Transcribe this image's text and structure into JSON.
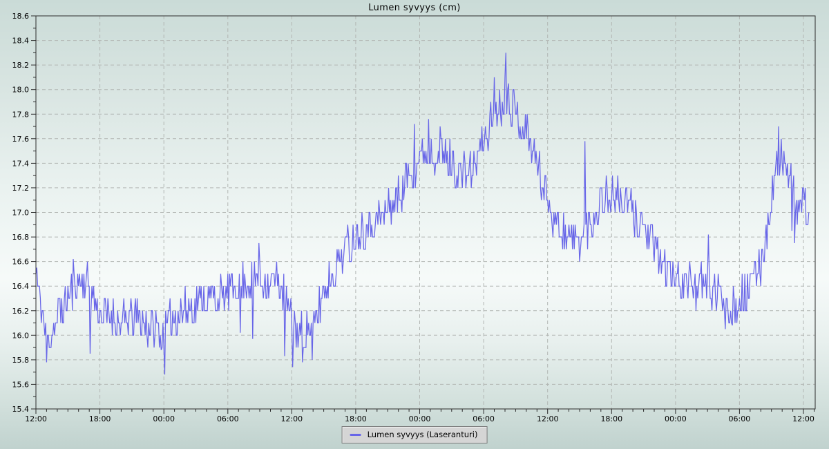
{
  "page": {
    "title": "Lumen syvyys (cm)"
  },
  "legend": {
    "items": [
      {
        "label": "Lumen syvyys (Laseranturi)",
        "color": "#6866e8"
      }
    ]
  },
  "colors": {
    "line": "#6866e8",
    "grid": "#b2b6b3",
    "axis": "#2b2b2b",
    "text": "#000000",
    "legend_bg": "#d5d5d5",
    "legend_border": "#7a7a7a"
  },
  "chart_data": {
    "type": "line",
    "title": "Lumen syvyys (cm)",
    "unit": "cm",
    "legend_position": "bottom-center",
    "grid_style": "dashed",
    "x_unit": "time of day, 72 h span, major ticks every 6 h, minor ticks hourly",
    "x_tick_labels": [
      "12:00",
      "18:00",
      "00:00",
      "06:00",
      "12:00",
      "18:00",
      "00:00",
      "06:00",
      "12:00",
      "18:00",
      "00:00",
      "06:00",
      "12:00"
    ],
    "x_domain_hours": [
      0,
      73.1
    ],
    "x_major_step_hours": 6,
    "x_minor_step_hours": 1,
    "data_end_hour": 72.5,
    "ylim": [
      15.4,
      18.6
    ],
    "y_major_step": 0.2,
    "y_minor_step": 0.1,
    "y_tick_labels": [
      "15.4",
      "15.6",
      "15.8",
      "16.0",
      "16.2",
      "16.4",
      "16.6",
      "16.8",
      "17.0",
      "17.2",
      "17.4",
      "17.6",
      "17.8",
      "18.0",
      "18.2",
      "18.4",
      "18.6"
    ],
    "series": [
      {
        "name": "Lumen syvyys (Laseranturi)",
        "quantize_cm": 0.1,
        "noise_amplitude_cm": 0.16,
        "samples_per_hour": 12,
        "noise_seed": 11,
        "trend_points": [
          [
            0,
            16.45
          ],
          [
            0.5,
            16.2
          ],
          [
            1,
            15.95
          ],
          [
            1.5,
            16.0
          ],
          [
            2,
            16.15
          ],
          [
            3,
            16.3
          ],
          [
            4,
            16.45
          ],
          [
            5,
            16.4
          ],
          [
            5.5,
            16.25
          ],
          [
            6,
            16.2
          ],
          [
            7,
            16.15
          ],
          [
            8,
            16.1
          ],
          [
            9,
            16.15
          ],
          [
            10,
            16.1
          ],
          [
            11,
            16.05
          ],
          [
            12,
            16.05
          ],
          [
            13,
            16.15
          ],
          [
            14,
            16.2
          ],
          [
            15,
            16.25
          ],
          [
            16,
            16.3
          ],
          [
            17,
            16.3
          ],
          [
            18,
            16.35
          ],
          [
            19,
            16.4
          ],
          [
            20,
            16.45
          ],
          [
            21,
            16.45
          ],
          [
            22,
            16.45
          ],
          [
            23,
            16.4
          ],
          [
            23.5,
            16.25
          ],
          [
            24,
            16.1
          ],
          [
            25,
            16.05
          ],
          [
            26,
            16.05
          ],
          [
            27,
            16.35
          ],
          [
            28,
            16.55
          ],
          [
            29,
            16.7
          ],
          [
            30,
            16.8
          ],
          [
            31,
            16.9
          ],
          [
            32,
            16.95
          ],
          [
            33,
            17.0
          ],
          [
            34,
            17.15
          ],
          [
            35,
            17.3
          ],
          [
            36,
            17.45
          ],
          [
            37,
            17.5
          ],
          [
            38,
            17.5
          ],
          [
            39,
            17.4
          ],
          [
            40,
            17.3
          ],
          [
            41,
            17.35
          ],
          [
            42,
            17.6
          ],
          [
            43,
            17.8
          ],
          [
            44,
            17.95
          ],
          [
            44.5,
            17.9
          ],
          [
            45,
            17.8
          ],
          [
            46,
            17.65
          ],
          [
            47,
            17.4
          ],
          [
            48,
            17.1
          ],
          [
            49,
            16.9
          ],
          [
            50,
            16.8
          ],
          [
            51,
            16.75
          ],
          [
            52,
            16.9
          ],
          [
            53,
            17.1
          ],
          [
            54,
            17.15
          ],
          [
            55,
            17.1
          ],
          [
            56,
            17.0
          ],
          [
            57,
            16.9
          ],
          [
            58,
            16.7
          ],
          [
            59,
            16.55
          ],
          [
            60,
            16.45
          ],
          [
            61,
            16.45
          ],
          [
            62,
            16.4
          ],
          [
            63,
            16.4
          ],
          [
            64,
            16.35
          ],
          [
            65,
            16.25
          ],
          [
            66,
            16.3
          ],
          [
            67,
            16.4
          ],
          [
            68,
            16.6
          ],
          [
            68.5,
            16.8
          ],
          [
            69,
            17.1
          ],
          [
            69.5,
            17.4
          ],
          [
            70,
            17.45
          ],
          [
            70.5,
            17.3
          ],
          [
            71,
            17.15
          ],
          [
            71.5,
            17.0
          ],
          [
            72,
            17.1
          ],
          [
            72.5,
            17.05
          ]
        ],
        "spikes": [
          [
            0.05,
            16.55
          ],
          [
            1.0,
            15.78
          ],
          [
            3.5,
            16.62
          ],
          [
            5.05,
            15.85
          ],
          [
            11.75,
            15.88
          ],
          [
            12.05,
            15.68
          ],
          [
            19.2,
            16.02
          ],
          [
            20.3,
            15.97
          ],
          [
            20.9,
            16.75
          ],
          [
            23.3,
            15.83
          ],
          [
            24.1,
            15.74
          ],
          [
            25.0,
            15.78
          ],
          [
            25.9,
            15.8
          ],
          [
            35.5,
            17.72
          ],
          [
            36.8,
            17.76
          ],
          [
            43.0,
            18.1
          ],
          [
            44.05,
            18.3
          ],
          [
            44.3,
            18.05
          ],
          [
            51.5,
            17.58
          ],
          [
            63.1,
            16.82
          ],
          [
            64.7,
            16.05
          ],
          [
            65.3,
            16.08
          ],
          [
            69.7,
            17.7
          ],
          [
            70.9,
            16.85
          ],
          [
            71.15,
            16.75
          ]
        ]
      }
    ]
  }
}
